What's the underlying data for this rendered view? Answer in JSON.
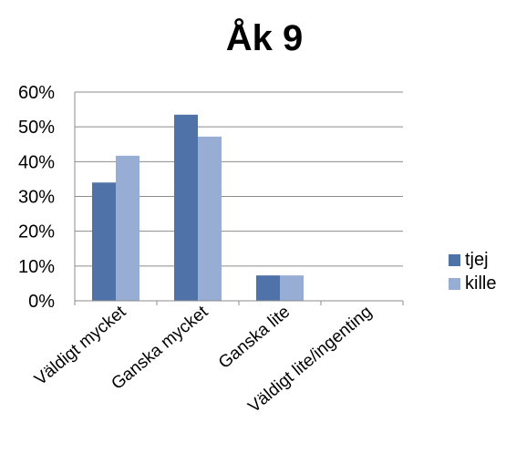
{
  "chart_data": {
    "type": "bar",
    "title": "Åk 9",
    "xlabel": "",
    "ylabel": "",
    "categories": [
      "Väldigt mycket",
      "Ganska mycket",
      "Ganska lite",
      "Väldigt lite/ingenting"
    ],
    "series": [
      {
        "name": "tjej",
        "color": "#4F73A8",
        "values": [
          34,
          53.5,
          7.3,
          0
        ]
      },
      {
        "name": "kille",
        "color": "#98ADD4",
        "values": [
          41.7,
          47.2,
          7.3,
          0
        ]
      }
    ],
    "ylim": [
      0,
      60
    ],
    "yticks": [
      "0%",
      "10%",
      "20%",
      "30%",
      "40%",
      "50%",
      "60%"
    ],
    "grid": true,
    "legend": "right"
  }
}
